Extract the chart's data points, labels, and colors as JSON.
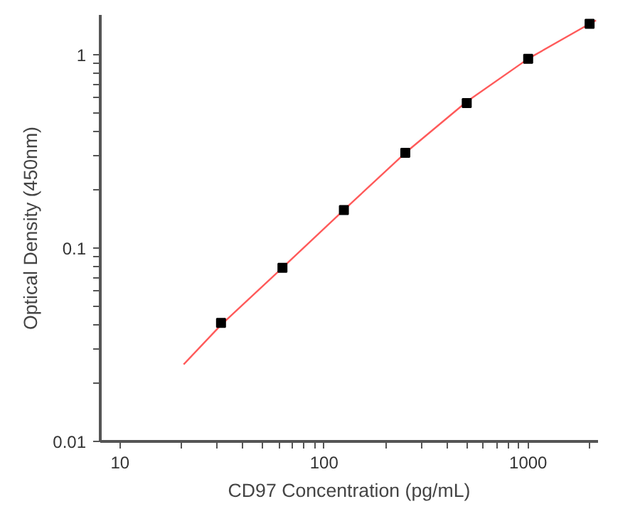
{
  "chart_data": {
    "type": "scatter",
    "xlabel": "CD97 Concentration (pg/mL)",
    "ylabel": "Optical Density (450nm)",
    "log": "xy",
    "grid": false,
    "xlim": [
      8,
      2200
    ],
    "ylim": [
      0.01,
      1.6
    ],
    "xticks": [
      10,
      {
        "value": 20,
        "label": null
      },
      {
        "value": 30,
        "label": null
      },
      {
        "value": 40,
        "label": null
      },
      {
        "value": 50,
        "label": null
      },
      {
        "value": 60,
        "label": null
      },
      {
        "value": 70,
        "label": null
      },
      {
        "value": 80,
        "label": null
      },
      {
        "value": 90,
        "label": null
      },
      100,
      {
        "value": 200,
        "label": null
      },
      {
        "value": 300,
        "label": null
      },
      {
        "value": 400,
        "label": null
      },
      {
        "value": 500,
        "label": null
      },
      {
        "value": 600,
        "label": null
      },
      {
        "value": 700,
        "label": null
      },
      {
        "value": 800,
        "label": null
      },
      {
        "value": 900,
        "label": null
      },
      1000,
      {
        "value": 2000,
        "label": null
      }
    ],
    "yticks": [
      0.01,
      {
        "value": 0.02,
        "label": null
      },
      {
        "value": 0.03,
        "label": null
      },
      {
        "value": 0.04,
        "label": null
      },
      {
        "value": 0.05,
        "label": null
      },
      {
        "value": 0.06,
        "label": null
      },
      {
        "value": 0.07,
        "label": null
      },
      {
        "value": 0.08,
        "label": null
      },
      {
        "value": 0.09,
        "label": null
      },
      0.1,
      {
        "value": 0.2,
        "label": null
      },
      {
        "value": 0.3,
        "label": null
      },
      {
        "value": 0.4,
        "label": null
      },
      {
        "value": 0.5,
        "label": null
      },
      {
        "value": 0.6,
        "label": null
      },
      {
        "value": 0.7,
        "label": null
      },
      {
        "value": 0.8,
        "label": null
      },
      {
        "value": 0.9,
        "label": null
      },
      1
    ],
    "series": [
      {
        "type": "line",
        "color": "#ff5a5a",
        "line_style": "solid",
        "x": [
          20.5,
          31.25,
          62.5,
          125,
          250,
          500,
          1000,
          2000,
          2150
        ],
        "values": [
          0.025,
          0.04,
          0.079,
          0.157,
          0.31,
          0.57,
          0.95,
          1.44,
          1.5
        ]
      },
      {
        "color": "#000000",
        "marker": "square",
        "x": [
          31.25,
          62.5,
          125,
          250,
          500,
          1000,
          2000
        ],
        "values": [
          0.041,
          0.079,
          0.157,
          0.31,
          0.56,
          0.95,
          1.44
        ]
      }
    ]
  }
}
